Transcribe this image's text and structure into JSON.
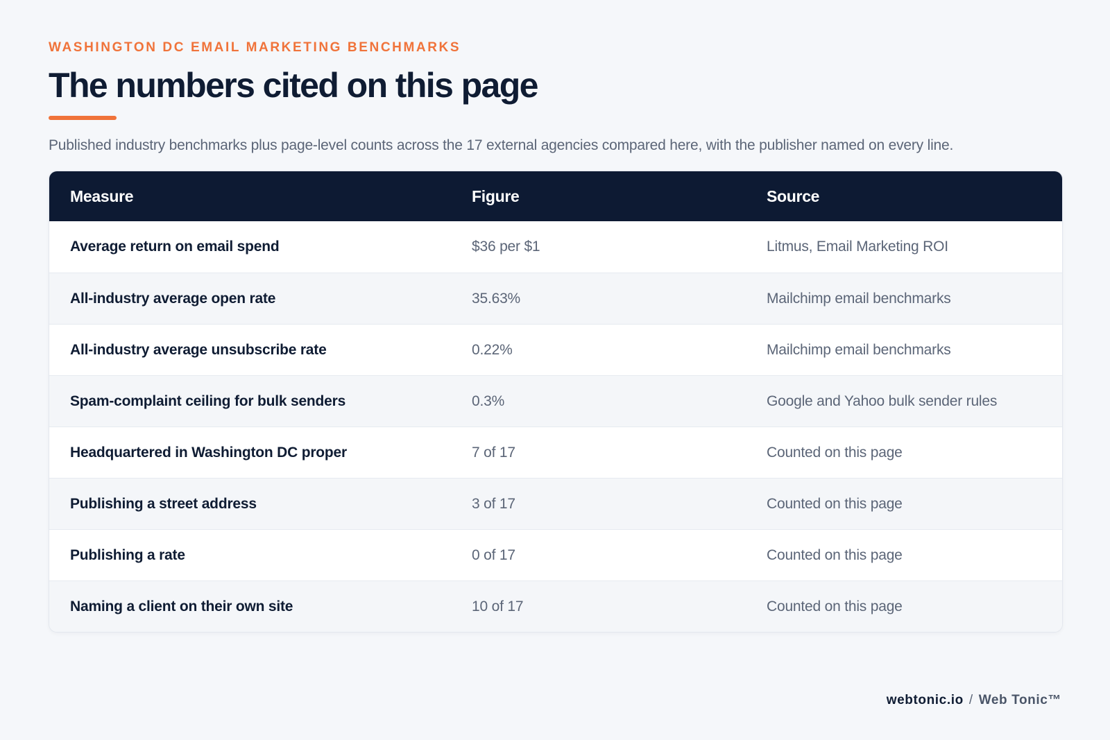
{
  "header": {
    "eyebrow": "WASHINGTON DC EMAIL MARKETING BENCHMARKS",
    "title": "The numbers cited on this page",
    "subtitle": "Published industry benchmarks plus page-level counts across the 17 external agencies compared here, with the publisher named on every line."
  },
  "table": {
    "columns": [
      "Measure",
      "Figure",
      "Source"
    ],
    "rows": [
      {
        "measure": "Average return on email spend",
        "figure": "$36 per $1",
        "source": "Litmus, Email Marketing ROI"
      },
      {
        "measure": "All-industry average open rate",
        "figure": "35.63%",
        "source": "Mailchimp email benchmarks"
      },
      {
        "measure": "All-industry average unsubscribe rate",
        "figure": "0.22%",
        "source": "Mailchimp email benchmarks"
      },
      {
        "measure": "Spam-complaint ceiling for bulk senders",
        "figure": "0.3%",
        "source": "Google and Yahoo bulk sender rules"
      },
      {
        "measure": "Headquartered in Washington DC proper",
        "figure": "7 of 17",
        "source": "Counted on this page"
      },
      {
        "measure": "Publishing a street address",
        "figure": "3 of 17",
        "source": "Counted on this page"
      },
      {
        "measure": "Publishing a rate",
        "figure": "0 of 17",
        "source": "Counted on this page"
      },
      {
        "measure": "Naming a client on their own site",
        "figure": "10 of 17",
        "source": "Counted on this page"
      }
    ]
  },
  "footer": {
    "site": "webtonic.io",
    "separator": "/",
    "brand": "Web Tonic™"
  },
  "colors": {
    "accent": "#f0733a",
    "header_bg": "#0d1a33",
    "page_bg": "#f5f7fa"
  }
}
